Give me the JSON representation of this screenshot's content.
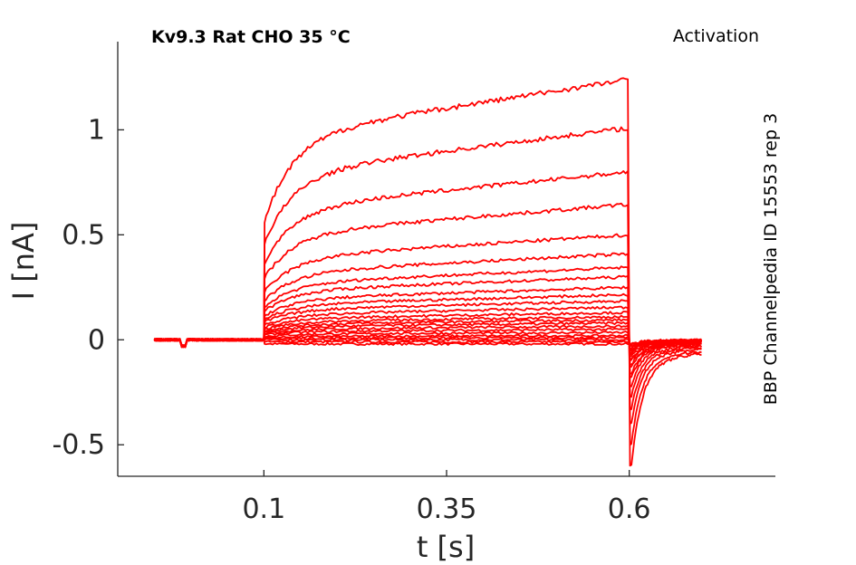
{
  "chart_data": {
    "type": "line",
    "title": "Kv9.3  Rat  CHO  35 °C",
    "annotation": "Activation",
    "side_label": "BBP Channelpedia ID 15553 rep 3",
    "xlabel": "t [s]",
    "ylabel": "I [nA]",
    "xlim": [
      -0.1,
      0.8
    ],
    "ylim": [
      -0.65,
      1.42
    ],
    "x_ticks": [
      0.1,
      0.35,
      0.6
    ],
    "x_tick_labels": [
      "0.1",
      "0.35",
      "0.6"
    ],
    "y_ticks": [
      -0.5,
      0,
      0.5,
      1
    ],
    "y_tick_labels": [
      "-0.5",
      "0",
      "0.5",
      "1"
    ],
    "grid": false,
    "legend": "none",
    "color": "#ff0000",
    "protocol": {
      "t_start": -0.05,
      "step_on": 0.1,
      "step_off": 0.6,
      "t_end": 0.7
    },
    "series": [
      {
        "plateau": -0.02,
        "tail": -0.02
      },
      {
        "plateau": -0.01,
        "tail": -0.02
      },
      {
        "plateau": 0.0,
        "tail": -0.02
      },
      {
        "plateau": 0.01,
        "tail": -0.03
      },
      {
        "plateau": 0.02,
        "tail": -0.03
      },
      {
        "plateau": 0.035,
        "tail": -0.04
      },
      {
        "plateau": 0.05,
        "tail": -0.04
      },
      {
        "plateau": 0.065,
        "tail": -0.05
      },
      {
        "plateau": 0.08,
        "tail": -0.05
      },
      {
        "plateau": 0.095,
        "tail": -0.06
      },
      {
        "plateau": 0.11,
        "tail": -0.07
      },
      {
        "plateau": 0.13,
        "tail": -0.08
      },
      {
        "plateau": 0.155,
        "tail": -0.09
      },
      {
        "plateau": 0.185,
        "tail": -0.1
      },
      {
        "plateau": 0.215,
        "tail": -0.12
      },
      {
        "plateau": 0.25,
        "tail": -0.13
      },
      {
        "plateau": 0.3,
        "tail": -0.16
      },
      {
        "plateau": 0.345,
        "tail": -0.18
      },
      {
        "plateau": 0.41,
        "tail": -0.22
      },
      {
        "plateau": 0.5,
        "tail": -0.27
      },
      {
        "plateau": 0.645,
        "tail": -0.33
      },
      {
        "plateau": 0.8,
        "tail": -0.4
      },
      {
        "plateau": 1.01,
        "tail": -0.5
      },
      {
        "plateau": 1.24,
        "tail": -0.6
      }
    ]
  }
}
